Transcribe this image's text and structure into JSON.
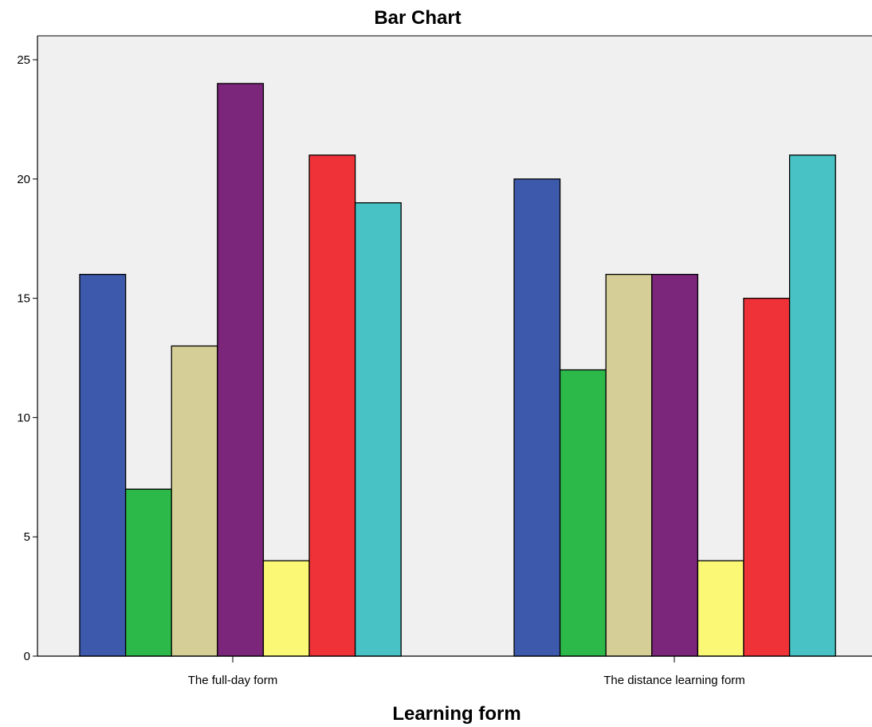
{
  "chart_data": {
    "type": "bar",
    "title": "Bar Chart",
    "xlabel": "Learning form",
    "ylabel": "",
    "ylim": [
      0,
      26
    ],
    "yticks": [
      0,
      5,
      10,
      15,
      20,
      25
    ],
    "categories": [
      "The full-day form",
      "The distance learning form"
    ],
    "series": [
      {
        "values": [
          16,
          20
        ],
        "color": "#3d59ab"
      },
      {
        "values": [
          7,
          12
        ],
        "color": "#2db84a"
      },
      {
        "values": [
          13,
          16
        ],
        "color": "#d5ce96"
      },
      {
        "values": [
          24,
          16
        ],
        "color": "#7b267a"
      },
      {
        "values": [
          4,
          4
        ],
        "color": "#fbf875"
      },
      {
        "values": [
          21,
          15
        ],
        "color": "#ef3238"
      },
      {
        "values": [
          19,
          21
        ],
        "color": "#48c2c5"
      }
    ],
    "grid": false,
    "legend": "none",
    "plot_background": "#f0f0f0"
  }
}
